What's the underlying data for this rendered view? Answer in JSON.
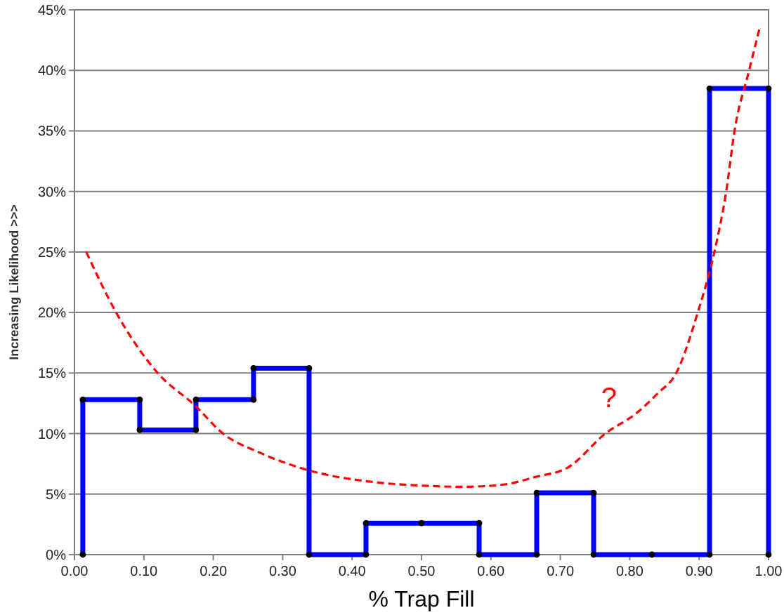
{
  "chart_data": {
    "type": "line",
    "xlabel": "% Trap Fill",
    "ylabel": "Increasing Likelihood >>>",
    "xlim": [
      0,
      1
    ],
    "ylim": [
      0,
      45
    ],
    "xticks": [
      {
        "value": 0,
        "label": "0.00"
      },
      {
        "value": 0.1,
        "label": "0.10"
      },
      {
        "value": 0.2,
        "label": "0.20"
      },
      {
        "value": 0.3,
        "label": "0.30"
      },
      {
        "value": 0.4,
        "label": "0.40"
      },
      {
        "value": 0.5,
        "label": "0.50"
      },
      {
        "value": 0.6,
        "label": "0.60"
      },
      {
        "value": 0.7,
        "label": "0.70"
      },
      {
        "value": 0.8,
        "label": "0.80"
      },
      {
        "value": 0.9,
        "label": "0.90"
      },
      {
        "value": 1,
        "label": "1.00"
      }
    ],
    "yticks": [
      {
        "value": 0,
        "label": "0%"
      },
      {
        "value": 5,
        "label": "5%"
      },
      {
        "value": 10,
        "label": "10%"
      },
      {
        "value": 15,
        "label": "15%"
      },
      {
        "value": 20,
        "label": "20%"
      },
      {
        "value": 25,
        "label": "25%"
      },
      {
        "value": 30,
        "label": "30%"
      },
      {
        "value": 35,
        "label": "35%"
      },
      {
        "value": 40,
        "label": "40%"
      },
      {
        "value": 45,
        "label": "45%"
      }
    ],
    "grid": "y",
    "series": [
      {
        "color": "#0000ff",
        "marker": "circle",
        "line_style": "solid",
        "x": [
          0.012,
          0.012,
          0.094,
          0.094,
          0.175,
          0.175,
          0.258,
          0.258,
          0.338,
          0.338,
          0.42,
          0.42,
          0.5,
          0.583,
          0.583,
          0.666,
          0.666,
          0.748,
          0.748,
          0.832,
          0.915,
          0.915,
          1,
          1
        ],
        "values": [
          0,
          12.8,
          12.8,
          10.3,
          10.3,
          12.8,
          12.8,
          15.4,
          15.4,
          0,
          0,
          2.6,
          2.6,
          2.6,
          0,
          0,
          5.1,
          5.1,
          0,
          0,
          0,
          38.5,
          38.5,
          0
        ]
      },
      {
        "color": "#ff0000",
        "marker": "none",
        "line_style": "dashed",
        "x": [
          0.017,
          0.06,
          0.12,
          0.174,
          0.214,
          0.268,
          0.335,
          0.43,
          0.5,
          0.56,
          0.62,
          0.663,
          0.711,
          0.765,
          0.81,
          0.84,
          0.867,
          0.898,
          0.922,
          0.939,
          0.951,
          0.972,
          0.988
        ],
        "values": [
          25,
          20,
          15,
          12.3,
          10,
          8.4,
          7,
          6,
          5.7,
          5.6,
          5.8,
          6.4,
          7.2,
          10,
          11.7,
          13.3,
          15,
          20,
          25,
          30,
          35,
          40,
          43.7
        ]
      }
    ],
    "annotations": [
      "?"
    ]
  }
}
